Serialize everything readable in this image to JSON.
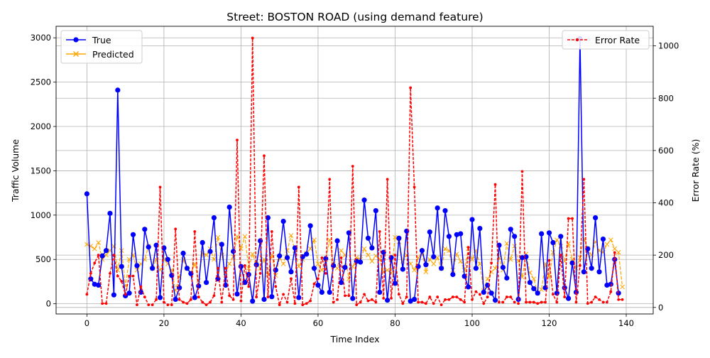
{
  "chart_data": {
    "type": "line",
    "title": "Street: BOSTON ROAD (using demand feature)",
    "xlabel": "Time Index",
    "ylabel_left": "Traffic Volume",
    "ylabel_right": "Error Rate (%)",
    "xlim": [
      -8,
      147
    ],
    "ylim_left": [
      -115,
      3130
    ],
    "ylim_right": [
      -25,
      1075
    ],
    "x_ticks": [
      0,
      20,
      40,
      60,
      80,
      100,
      120,
      140
    ],
    "y_ticks_left": [
      0,
      500,
      1000,
      1500,
      2000,
      2500,
      3000
    ],
    "y_ticks_right": [
      0,
      200,
      400,
      600,
      800,
      1000
    ],
    "grid": true,
    "legend_left_placement": "top-left",
    "legend_right_placement": "top-right",
    "colors": {
      "true": "#0000ff",
      "predicted": "#ffa500",
      "error": "#ff0000"
    },
    "series": [
      {
        "name": "True",
        "axis": "left",
        "style": "solid-circle",
        "values": [
          1240,
          280,
          220,
          210,
          540,
          600,
          1020,
          100,
          2410,
          420,
          90,
          120,
          780,
          430,
          130,
          840,
          640,
          400,
          660,
          70,
          630,
          500,
          320,
          50,
          180,
          570,
          400,
          340,
          70,
          200,
          690,
          240,
          590,
          970,
          280,
          670,
          210,
          1090,
          590,
          110,
          420,
          240,
          330,
          30,
          440,
          710,
          50,
          970,
          80,
          380,
          540,
          930,
          520,
          360,
          630,
          70,
          530,
          560,
          880,
          400,
          210,
          130,
          510,
          130,
          430,
          710,
          240,
          410,
          800,
          60,
          480,
          470,
          1170,
          740,
          630,
          1050,
          130,
          580,
          40,
          520,
          230,
          740,
          390,
          820,
          30,
          50,
          420,
          600,
          440,
          810,
          530,
          1080,
          400,
          1050,
          760,
          330,
          780,
          790,
          310,
          190,
          950,
          400,
          850,
          130,
          210,
          120,
          40,
          660,
          410,
          290,
          840,
          760,
          50,
          520,
          530,
          240,
          170,
          120,
          790,
          180,
          800,
          690,
          120,
          760,
          180,
          60,
          460,
          130,
          2990,
          360,
          620,
          400,
          970,
          360,
          730,
          210,
          220,
          500,
          120
        ]
      },
      {
        "name": "Predicted",
        "axis": "left",
        "style": "dashed-x",
        "values": [
          670,
          650,
          620,
          690,
          500,
          550,
          600,
          650,
          380,
          600,
          200,
          500,
          550,
          380,
          450,
          500,
          650,
          400,
          500,
          380,
          500,
          450,
          380,
          150,
          300,
          500,
          400,
          350,
          450,
          260,
          570,
          550,
          620,
          500,
          750,
          550,
          350,
          450,
          530,
          760,
          620,
          760,
          400,
          560,
          450,
          400,
          500,
          330,
          550,
          320,
          520,
          450,
          600,
          770,
          600,
          420,
          500,
          570,
          620,
          720,
          450,
          380,
          500,
          720,
          450,
          400,
          600,
          550,
          280,
          420,
          520,
          500,
          620,
          550,
          480,
          540,
          500,
          360,
          380,
          350,
          750,
          700,
          480,
          550,
          450,
          380,
          520,
          580,
          360,
          500,
          450,
          520,
          400,
          620,
          600,
          380,
          560,
          480,
          380,
          620,
          500,
          600,
          450,
          150,
          280,
          360,
          400,
          520,
          380,
          680,
          500,
          650,
          480,
          300,
          560,
          350,
          280,
          120,
          160,
          450,
          300,
          580,
          720,
          650,
          480,
          680,
          500,
          400,
          520,
          730,
          620,
          550,
          700,
          600,
          580,
          670,
          720,
          620,
          580,
          190
        ]
      },
      {
        "name": "Error Rate",
        "axis": "right",
        "style": "dashed-dot",
        "values": [
          50,
          130,
          170,
          200,
          15,
          15,
          130,
          200,
          120,
          100,
          50,
          120,
          120,
          10,
          80,
          40,
          10,
          10,
          30,
          460,
          20,
          10,
          10,
          300,
          30,
          20,
          15,
          30,
          290,
          40,
          20,
          10,
          20,
          45,
          150,
          20,
          150,
          45,
          30,
          640,
          25,
          160,
          80,
          1030,
          40,
          130,
          580,
          40,
          290,
          80,
          10,
          50,
          20,
          110,
          15,
          460,
          10,
          15,
          25,
          90,
          110,
          190,
          130,
          490,
          20,
          30,
          190,
          45,
          45,
          540,
          10,
          20,
          50,
          25,
          30,
          20,
          290,
          35,
          490,
          35,
          200,
          50,
          15,
          40,
          840,
          460,
          20,
          20,
          15,
          40,
          15,
          40,
          10,
          30,
          30,
          40,
          40,
          30,
          20,
          230,
          30,
          60,
          50,
          15,
          40,
          170,
          470,
          20,
          20,
          40,
          40,
          20,
          15,
          520,
          20,
          20,
          20,
          15,
          20,
          20,
          180,
          50,
          20,
          200,
          40,
          340,
          340,
          20,
          160,
          490,
          15,
          20,
          40,
          30,
          20,
          20,
          60,
          210,
          30,
          30
        ]
      }
    ]
  }
}
